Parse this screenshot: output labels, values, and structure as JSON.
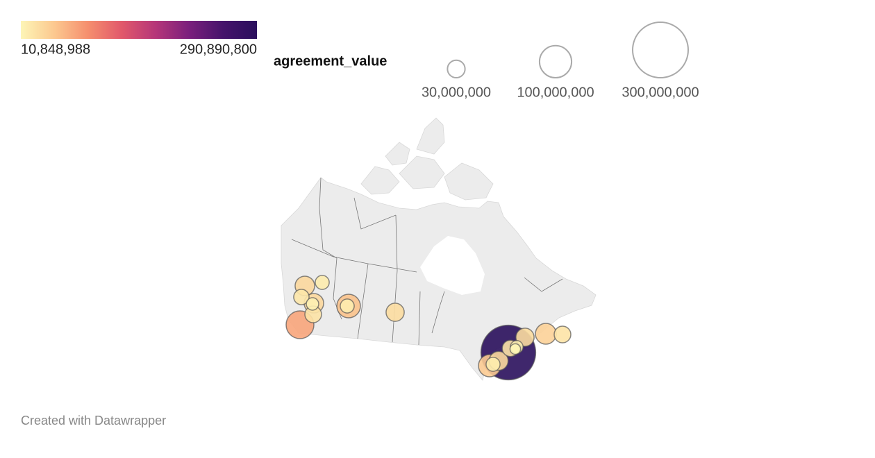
{
  "color_legend": {
    "colors": [
      "#fdf5b6",
      "#fcc88f",
      "#f58e6e",
      "#e1586b",
      "#b53679",
      "#7a1f7c",
      "#45136b",
      "#2a0f5c"
    ],
    "min": {
      "value": 10848988,
      "label": "10,848,988"
    },
    "max": {
      "value": 290890800,
      "label": "290,890,800"
    }
  },
  "size_legend": {
    "title": "agreement_value",
    "items": [
      {
        "value": 30000000,
        "label": "30,000,000"
      },
      {
        "value": 100000000,
        "label": "100,000,000"
      },
      {
        "value": 300000000,
        "label": "300,000,000"
      }
    ]
  },
  "symbols": {
    "values": [
      290890800,
      75000000,
      54000000,
      48000000,
      42000000,
      37000000,
      37000000,
      35000000,
      32000000,
      32000000,
      27000000,
      27000000,
      26000000,
      23000000,
      19000000,
      19000000,
      19000000,
      16000000,
      15000000,
      10848988
    ]
  },
  "footer": "Created with Datawrapper"
}
